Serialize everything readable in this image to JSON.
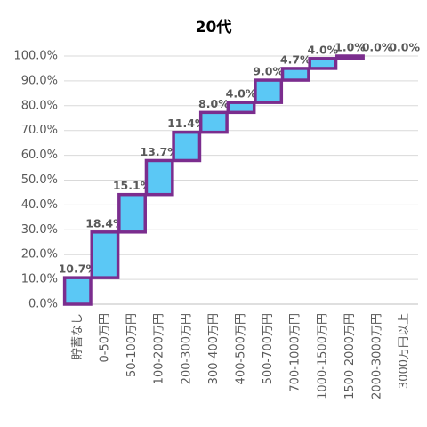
{
  "chart_data": {
    "type": "waterfall",
    "title": "20代",
    "categories": [
      "貯蓄なし",
      "0-50万円",
      "50-100万円",
      "100-200万円",
      "200-300万円",
      "300-400万円",
      "400-500万円",
      "500-700万円",
      "700-1000万円",
      "1000-1500万円",
      "1500-2000万円",
      "2000-3000万円",
      "3000万円以上"
    ],
    "values": [
      10.7,
      18.4,
      15.1,
      13.7,
      11.4,
      8.0,
      4.0,
      9.0,
      4.7,
      4.0,
      1.0,
      0.0,
      0.0
    ],
    "value_labels": [
      "10.7%",
      "18.4%",
      "15.1%",
      "13.7%",
      "11.4%",
      "8.0%",
      "4.0%",
      "9.0%",
      "4.7%",
      "4.0%",
      "1.0%",
      "0.0%",
      "0.0%"
    ],
    "color": "#5bc8f5",
    "edge_color": "#7b2d8e",
    "ylim": [
      0,
      100
    ],
    "yticks": [
      {
        "value": 0,
        "label": "0.0%"
      },
      {
        "value": 10,
        "label": "10.0%"
      },
      {
        "value": 20,
        "label": "20.0%"
      },
      {
        "value": 30,
        "label": "30.0%"
      },
      {
        "value": 40,
        "label": "40.0%"
      },
      {
        "value": 50,
        "label": "50.0%"
      },
      {
        "value": 60,
        "label": "60.0%"
      },
      {
        "value": 70,
        "label": "70.0%"
      },
      {
        "value": 80,
        "label": "80.0%"
      },
      {
        "value": 90,
        "label": "90.0%"
      },
      {
        "value": 100,
        "label": "100.0%"
      }
    ],
    "grid": true
  }
}
